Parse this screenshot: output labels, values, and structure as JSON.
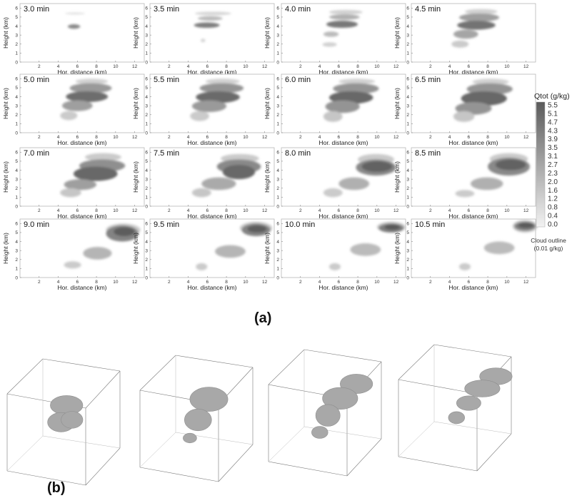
{
  "figure": {
    "part_a_label": "(a)",
    "part_b_label": "(b)",
    "xlabel": "Hor. distance (km)",
    "ylabel": "Height (km)"
  },
  "colorbar": {
    "title": "Qtot (g/kg)",
    "ticks": [
      "5.5",
      "5.1",
      "4.7",
      "4.3",
      "3.9",
      "3.5",
      "3.1",
      "2.7",
      "2.3",
      "2.0",
      "1.6",
      "1.2",
      "0.8",
      "0.4",
      "0.0"
    ],
    "outline_label_1": "Cloud outline",
    "outline_label_2": "(0.01 g/kg)",
    "color_high": "#5a5a5a",
    "color_low": "#f2f2f2"
  },
  "chart_data": {
    "type": "heatmap",
    "xlim": [
      0,
      13
    ],
    "ylim": [
      0,
      6.5
    ],
    "xticks": [
      2,
      4,
      6,
      8,
      10,
      12
    ],
    "yticks": [
      0,
      1,
      2,
      3,
      4,
      5,
      6
    ],
    "vlim": [
      0,
      5.5
    ],
    "panels": [
      {
        "label": "3.0 min",
        "blobs": [
          [
            4.7,
            6.8,
            5.3,
            5.5,
            0.8
          ],
          [
            5.0,
            6.3,
            3.7,
            4.2,
            3.8
          ]
        ]
      },
      {
        "label": "3.5 min",
        "blobs": [
          [
            4.7,
            8.5,
            5.2,
            5.6,
            1.0
          ],
          [
            5.0,
            7.6,
            4.6,
            5.1,
            2.0
          ],
          [
            4.6,
            7.3,
            3.8,
            4.4,
            4.2
          ],
          [
            5.3,
            5.8,
            2.2,
            2.6,
            1.0
          ]
        ]
      },
      {
        "label": "4.0 min",
        "blobs": [
          [
            5.0,
            8.5,
            5.3,
            5.8,
            1.2
          ],
          [
            5.0,
            8.2,
            4.7,
            5.3,
            2.4
          ],
          [
            4.7,
            8.0,
            3.8,
            4.6,
            4.4
          ],
          [
            4.4,
            6.0,
            2.8,
            3.4,
            2.0
          ],
          [
            4.3,
            5.8,
            1.7,
            2.2,
            1.2
          ]
        ]
      },
      {
        "label": "4.5 min",
        "blobs": [
          [
            5.6,
            9.0,
            5.3,
            5.9,
            1.2
          ],
          [
            5.0,
            9.2,
            4.5,
            5.4,
            3.0
          ],
          [
            4.8,
            8.8,
            3.6,
            4.6,
            4.6
          ],
          [
            4.4,
            7.0,
            2.6,
            3.6,
            2.8
          ],
          [
            4.2,
            6.0,
            1.6,
            2.4,
            1.4
          ]
        ]
      },
      {
        "label": "5.0 min",
        "blobs": [
          [
            5.8,
            9.2,
            5.4,
            6.0,
            1.2
          ],
          [
            5.2,
            9.6,
            4.4,
            5.5,
            3.2
          ],
          [
            4.8,
            9.2,
            3.4,
            4.6,
            4.8
          ],
          [
            4.4,
            7.6,
            2.4,
            3.6,
            3.0
          ],
          [
            4.2,
            6.0,
            1.4,
            2.4,
            1.4
          ]
        ]
      },
      {
        "label": "5.5 min",
        "blobs": [
          [
            5.8,
            9.4,
            5.4,
            6.0,
            1.2
          ],
          [
            5.2,
            9.8,
            4.4,
            5.5,
            3.4
          ],
          [
            4.8,
            9.4,
            3.3,
            4.6,
            4.9
          ],
          [
            4.4,
            8.0,
            2.3,
            3.6,
            3.2
          ],
          [
            4.2,
            6.2,
            1.3,
            2.4,
            1.4
          ]
        ]
      },
      {
        "label": "6.0 min",
        "blobs": [
          [
            6.0,
            9.8,
            5.4,
            6.0,
            1.2
          ],
          [
            5.4,
            10.2,
            4.3,
            5.5,
            3.4
          ],
          [
            5.0,
            9.6,
            3.2,
            4.6,
            5.0
          ],
          [
            4.6,
            8.2,
            2.2,
            3.6,
            3.4
          ],
          [
            4.4,
            6.4,
            1.2,
            2.4,
            1.6
          ]
        ]
      },
      {
        "label": "6.5 min",
        "blobs": [
          [
            6.4,
            10.2,
            5.3,
            6.0,
            1.2
          ],
          [
            5.8,
            10.6,
            4.2,
            5.5,
            3.4
          ],
          [
            5.2,
            10.0,
            3.0,
            4.6,
            5.0
          ],
          [
            4.6,
            8.4,
            2.0,
            3.4,
            3.4
          ],
          [
            4.4,
            6.6,
            1.2,
            2.4,
            1.6
          ]
        ]
      },
      {
        "label": "7.0 min",
        "blobs": [
          [
            6.8,
            10.6,
            5.0,
            5.9,
            1.4
          ],
          [
            6.2,
            11.0,
            3.8,
            5.2,
            3.6
          ],
          [
            5.6,
            10.2,
            2.8,
            4.4,
            5.0
          ],
          [
            4.6,
            8.0,
            1.8,
            3.0,
            3.0
          ],
          [
            4.2,
            6.4,
            1.0,
            2.0,
            1.6
          ]
        ]
      },
      {
        "label": "7.5 min",
        "blobs": [
          [
            7.4,
            11.4,
            4.8,
            5.8,
            1.4
          ],
          [
            7.0,
            11.6,
            3.6,
            5.2,
            3.8
          ],
          [
            7.6,
            11.0,
            3.0,
            4.6,
            5.0
          ],
          [
            5.4,
            9.0,
            1.8,
            3.2,
            2.6
          ],
          [
            4.4,
            6.4,
            1.0,
            2.0,
            1.6
          ]
        ]
      },
      {
        "label": "8.0 min",
        "blobs": [
          [
            8.0,
            11.8,
            4.6,
            5.8,
            1.4
          ],
          [
            7.8,
            12.0,
            3.4,
            5.2,
            3.8
          ],
          [
            8.4,
            11.6,
            3.8,
            5.0,
            5.2
          ],
          [
            6.0,
            9.2,
            1.8,
            3.2,
            2.4
          ],
          [
            4.4,
            6.4,
            1.0,
            2.0,
            1.4
          ]
        ]
      },
      {
        "label": "8.5 min",
        "blobs": [
          [
            8.2,
            12.2,
            4.6,
            5.9,
            1.4
          ],
          [
            8.0,
            12.4,
            3.4,
            5.4,
            3.8
          ],
          [
            8.8,
            12.0,
            4.0,
            5.2,
            5.2
          ],
          [
            6.2,
            9.6,
            1.8,
            3.2,
            2.4
          ],
          [
            4.6,
            6.6,
            1.0,
            1.8,
            1.4
          ]
        ]
      },
      {
        "label": "9.0 min",
        "blobs": [
          [
            9.0,
            12.6,
            4.6,
            6.0,
            1.4
          ],
          [
            9.0,
            12.4,
            4.0,
            5.8,
            4.0
          ],
          [
            9.8,
            12.0,
            4.6,
            5.6,
            5.4
          ],
          [
            6.6,
            9.6,
            2.0,
            3.4,
            2.2
          ],
          [
            4.6,
            6.4,
            1.0,
            1.8,
            1.4
          ]
        ]
      },
      {
        "label": "9.5 min",
        "blobs": [
          [
            9.4,
            12.8,
            4.8,
            6.2,
            1.4
          ],
          [
            9.6,
            12.6,
            4.6,
            6.0,
            4.0
          ],
          [
            10.2,
            12.2,
            5.0,
            5.8,
            5.4
          ],
          [
            6.8,
            10.0,
            2.2,
            3.6,
            2.2
          ],
          [
            4.8,
            6.0,
            0.8,
            1.6,
            1.4
          ]
        ]
      },
      {
        "label": "10.0 min",
        "blobs": [
          [
            10.0,
            13.0,
            5.0,
            6.2,
            1.6
          ],
          [
            10.2,
            12.8,
            5.0,
            6.0,
            4.2
          ],
          [
            10.8,
            12.4,
            5.3,
            5.9,
            5.5
          ],
          [
            7.2,
            10.4,
            2.4,
            3.8,
            2.0
          ],
          [
            5.0,
            6.2,
            0.8,
            1.6,
            1.4
          ]
        ]
      },
      {
        "label": "10.5 min",
        "blobs": [
          [
            10.6,
            13.2,
            5.0,
            6.4,
            1.6
          ],
          [
            10.8,
            13.0,
            5.2,
            6.2,
            4.2
          ],
          [
            11.2,
            12.8,
            5.5,
            6.1,
            5.5
          ],
          [
            7.6,
            10.8,
            2.6,
            4.0,
            2.0
          ],
          [
            5.0,
            6.2,
            0.8,
            1.6,
            1.4
          ]
        ]
      }
    ]
  },
  "part_b": {
    "boxes": [
      {
        "blobs": [
          [
            0.48,
            0.4,
            0.12,
            0.08
          ],
          [
            0.44,
            0.54,
            0.1,
            0.08
          ],
          [
            0.52,
            0.52,
            0.08,
            0.07
          ]
        ]
      },
      {
        "blobs": [
          [
            0.55,
            0.38,
            0.14,
            0.1
          ],
          [
            0.47,
            0.55,
            0.1,
            0.09
          ],
          [
            0.41,
            0.7,
            0.05,
            0.04
          ]
        ]
      },
      {
        "blobs": [
          [
            0.69,
            0.3,
            0.12,
            0.08
          ],
          [
            0.57,
            0.42,
            0.13,
            0.09
          ],
          [
            0.48,
            0.56,
            0.09,
            0.09
          ],
          [
            0.42,
            0.7,
            0.06,
            0.05
          ]
        ]
      },
      {
        "blobs": [
          [
            0.76,
            0.28,
            0.12,
            0.07
          ],
          [
            0.66,
            0.38,
            0.13,
            0.07
          ],
          [
            0.56,
            0.5,
            0.09,
            0.06
          ],
          [
            0.47,
            0.62,
            0.06,
            0.05
          ]
        ]
      }
    ]
  }
}
